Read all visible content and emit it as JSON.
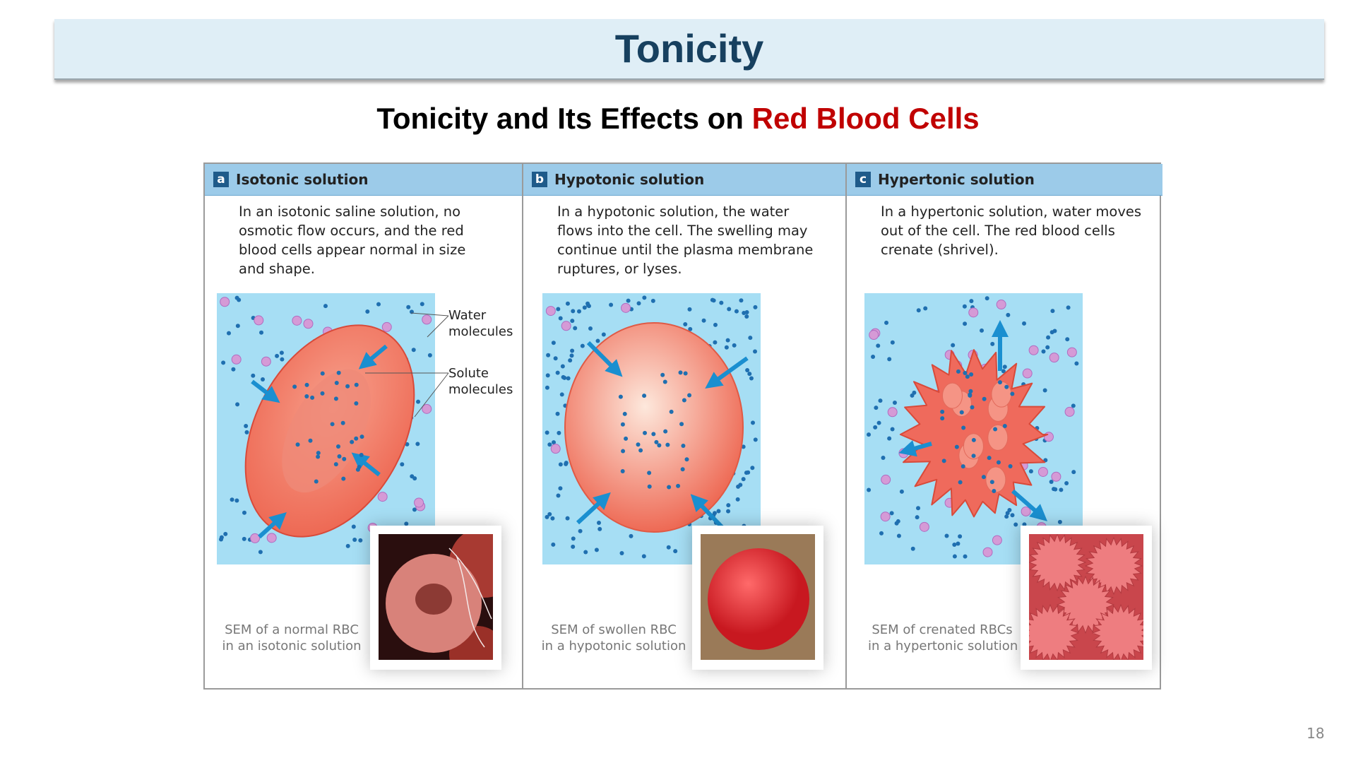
{
  "header": {
    "title": "Tonicity"
  },
  "subtitle": {
    "prefix": "Tonicity and Its Effects on ",
    "highlight": "Red Blood Cells"
  },
  "panels": [
    {
      "letter": "a",
      "heading": "Isotonic solution",
      "text": [
        "In an isotonic saline solution, no",
        "osmotic flow occurs, and the red",
        "blood cells appear normal in size",
        "and shape."
      ],
      "labels": [
        [
          "Water",
          "molecules"
        ],
        [
          "Solute",
          "molecules"
        ]
      ],
      "caption": [
        "SEM of a normal RBC",
        "in an isotonic solution"
      ]
    },
    {
      "letter": "b",
      "heading": "Hypotonic solution",
      "text": [
        "In a hypotonic solution, the water",
        "flows into the cell. The swelling may",
        "continue until the plasma membrane",
        "ruptures, or lyses."
      ],
      "caption": [
        "SEM of swollen RBC",
        "in a hypotonic solution"
      ]
    },
    {
      "letter": "c",
      "heading": "Hypertonic solution",
      "text": [
        "In a hypertonic solution, water moves",
        "out of the cell. The red blood cells",
        "crenate (shrivel)."
      ],
      "caption": [
        "SEM of crenated RBCs",
        "in a hypertonic solution"
      ]
    }
  ],
  "page_number": "18"
}
